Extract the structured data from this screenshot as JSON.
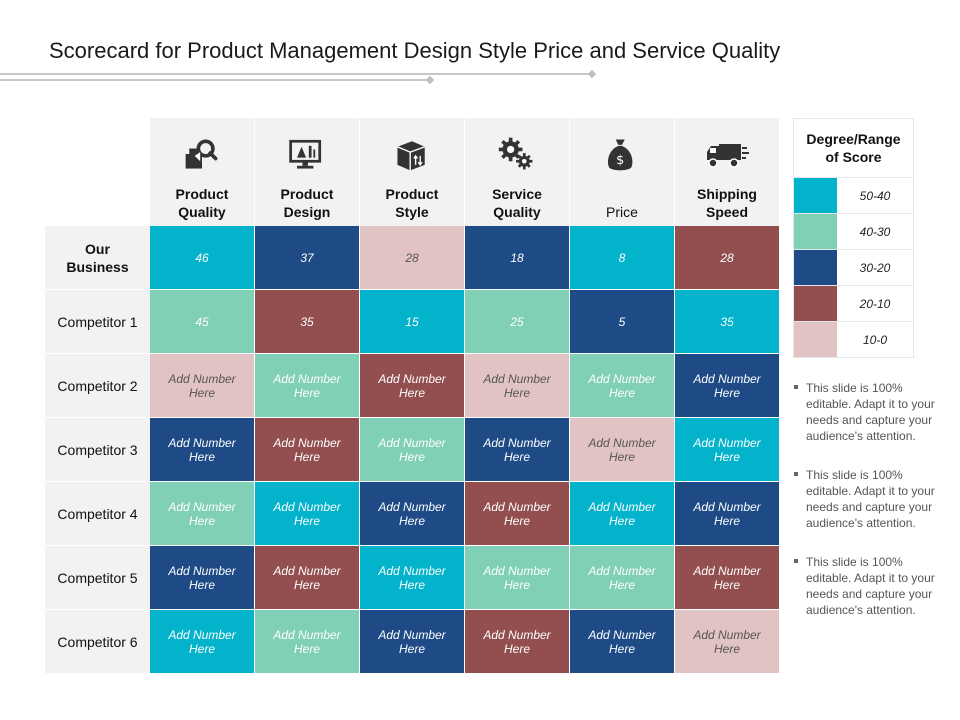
{
  "title": "Scorecard for Product Management Design Style Price and Service Quality",
  "colors": {
    "teal": "#02b3cb",
    "mint": "#80cfb7",
    "navy": "#1e4b86",
    "brown": "#934f4f",
    "pink": "#e2c3c4"
  },
  "columns": [
    {
      "label": "Product\nQuality",
      "icon": "magnifier-box-icon"
    },
    {
      "label": "Product\nDesign",
      "icon": "monitor-design-icon"
    },
    {
      "label": "Product\nStyle",
      "icon": "package-box-icon"
    },
    {
      "label": "Service\nQuality",
      "icon": "gears-icon"
    },
    {
      "label": "Price",
      "icon": "money-bag-icon"
    },
    {
      "label": "Shipping\nSpeed",
      "icon": "delivery-truck-icon"
    }
  ],
  "rows": [
    {
      "label": "Our\nBusiness",
      "cells": [
        {
          "text": "46",
          "color": "teal"
        },
        {
          "text": "37",
          "color": "navy"
        },
        {
          "text": "28",
          "color": "pink"
        },
        {
          "text": "18",
          "color": "navy"
        },
        {
          "text": "8",
          "color": "teal"
        },
        {
          "text": "28",
          "color": "brown"
        }
      ]
    },
    {
      "label": "Competitor 1",
      "cells": [
        {
          "text": "45",
          "color": "mint"
        },
        {
          "text": "35",
          "color": "brown"
        },
        {
          "text": "15",
          "color": "teal"
        },
        {
          "text": "25",
          "color": "mint"
        },
        {
          "text": "5",
          "color": "navy"
        },
        {
          "text": "35",
          "color": "teal"
        }
      ]
    },
    {
      "label": "Competitor 2",
      "cells": [
        {
          "text": "Add Number Here",
          "color": "pink"
        },
        {
          "text": "Add Number Here",
          "color": "mint"
        },
        {
          "text": "Add Number Here",
          "color": "brown"
        },
        {
          "text": "Add Number Here",
          "color": "pink"
        },
        {
          "text": "Add Number Here",
          "color": "mint"
        },
        {
          "text": "Add Number Here",
          "color": "navy"
        }
      ]
    },
    {
      "label": "Competitor 3",
      "cells": [
        {
          "text": "Add Number Here",
          "color": "navy"
        },
        {
          "text": "Add Number Here",
          "color": "brown"
        },
        {
          "text": "Add Number Here",
          "color": "mint"
        },
        {
          "text": "Add Number Here",
          "color": "navy"
        },
        {
          "text": "Add Number Here",
          "color": "pink"
        },
        {
          "text": "Add Number Here",
          "color": "teal"
        }
      ]
    },
    {
      "label": "Competitor 4",
      "cells": [
        {
          "text": "Add Number Here",
          "color": "mint"
        },
        {
          "text": "Add Number Here",
          "color": "teal"
        },
        {
          "text": "Add Number Here",
          "color": "navy"
        },
        {
          "text": "Add Number Here",
          "color": "brown"
        },
        {
          "text": "Add Number Here",
          "color": "teal"
        },
        {
          "text": "Add Number Here",
          "color": "navy"
        }
      ]
    },
    {
      "label": "Competitor 5",
      "cells": [
        {
          "text": "Add Number Here",
          "color": "navy"
        },
        {
          "text": "Add Number Here",
          "color": "brown"
        },
        {
          "text": "Add Number Here",
          "color": "teal"
        },
        {
          "text": "Add Number Here",
          "color": "mint"
        },
        {
          "text": "Add Number Here",
          "color": "mint"
        },
        {
          "text": "Add Number Here",
          "color": "brown"
        }
      ]
    },
    {
      "label": "Competitor 6",
      "cells": [
        {
          "text": "Add Number Here",
          "color": "teal"
        },
        {
          "text": "Add Number Here",
          "color": "mint"
        },
        {
          "text": "Add Number Here",
          "color": "navy"
        },
        {
          "text": "Add Number Here",
          "color": "brown"
        },
        {
          "text": "Add Number Here",
          "color": "navy"
        },
        {
          "text": "Add Number Here",
          "color": "pink"
        }
      ]
    }
  ],
  "legend": {
    "title": "Degree/Range\nof Score",
    "items": [
      {
        "range": "50-40",
        "color": "teal"
      },
      {
        "range": "40-30",
        "color": "mint"
      },
      {
        "range": "30-20",
        "color": "navy"
      },
      {
        "range": "20-10",
        "color": "brown"
      },
      {
        "range": "10-0",
        "color": "pink"
      }
    ]
  },
  "notes": [
    "This slide is 100% editable. Adapt it to your needs and capture your audience's attention.",
    "This slide is 100% editable. Adapt it to your needs and capture your audience's attention.",
    "This slide is 100% editable. Adapt it to your needs and capture your audience's attention."
  ]
}
